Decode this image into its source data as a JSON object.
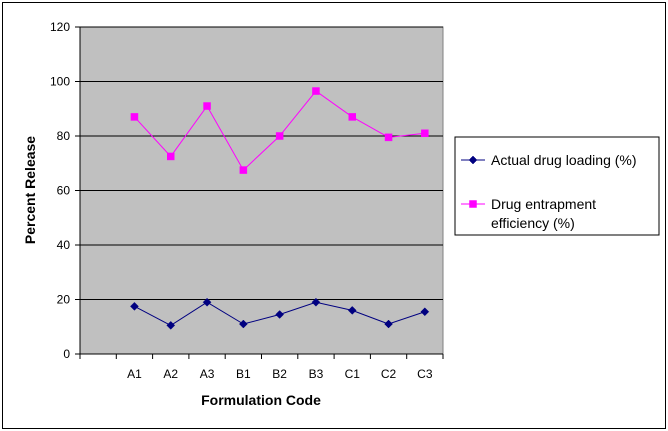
{
  "chart_data": {
    "type": "line",
    "title": "",
    "xlabel": "Formulation Code",
    "ylabel": "Percent Release",
    "categories": [
      "A1",
      "A2",
      "A3",
      "B1",
      "B2",
      "B3",
      "C1",
      "C2",
      "C3"
    ],
    "ylim": [
      0,
      120
    ],
    "yticks": [
      0,
      20,
      40,
      60,
      80,
      100,
      120
    ],
    "grid": true,
    "legend_position": "right",
    "series": [
      {
        "name": "Actual drug loading (%)",
        "legend_lines": [
          "Actual drug loading (%)"
        ],
        "values": [
          17.5,
          10.5,
          19,
          11,
          14.5,
          19,
          16,
          11,
          15.5
        ],
        "color": "#000080",
        "marker": "diamond"
      },
      {
        "name": "Drug entrapment efficiency (%)",
        "legend_lines": [
          "Drug entrapment",
          "efficiency (%)"
        ],
        "values": [
          87,
          72.5,
          91,
          67.5,
          80,
          96.5,
          87,
          79.5,
          81
        ],
        "color": "#FF00FF",
        "marker": "square"
      }
    ],
    "colors": {
      "plot_background": "#C0C0C0",
      "gridline": "#000000"
    }
  }
}
